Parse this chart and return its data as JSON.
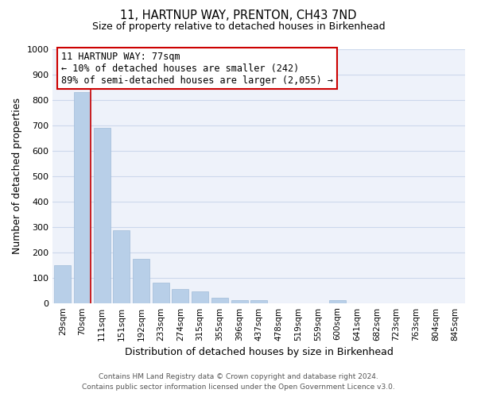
{
  "title": "11, HARTNUP WAY, PRENTON, CH43 7ND",
  "subtitle": "Size of property relative to detached houses in Birkenhead",
  "bar_labels": [
    "29sqm",
    "70sqm",
    "111sqm",
    "151sqm",
    "192sqm",
    "233sqm",
    "274sqm",
    "315sqm",
    "355sqm",
    "396sqm",
    "437sqm",
    "478sqm",
    "519sqm",
    "559sqm",
    "600sqm",
    "641sqm",
    "682sqm",
    "723sqm",
    "763sqm",
    "804sqm",
    "845sqm"
  ],
  "bar_values": [
    150,
    830,
    690,
    285,
    175,
    80,
    55,
    45,
    20,
    10,
    10,
    0,
    0,
    0,
    10,
    0,
    0,
    0,
    0,
    0,
    0
  ],
  "bar_color": "#b8cfe8",
  "bar_edge_color": "#a0bcd8",
  "highlight_line_color": "#cc0000",
  "xlabel": "Distribution of detached houses by size in Birkenhead",
  "ylabel": "Number of detached properties",
  "ylim": [
    0,
    1000
  ],
  "yticks": [
    0,
    100,
    200,
    300,
    400,
    500,
    600,
    700,
    800,
    900,
    1000
  ],
  "annotation_line1": "11 HARTNUP WAY: 77sqm",
  "annotation_line2": "← 10% of detached houses are smaller (242)",
  "annotation_line3": "89% of semi-detached houses are larger (2,055) →",
  "grid_color": "#ccd8ec",
  "bg_color": "#eef2fa",
  "footer_line1": "Contains HM Land Registry data © Crown copyright and database right 2024.",
  "footer_line2": "Contains public sector information licensed under the Open Government Licence v3.0."
}
